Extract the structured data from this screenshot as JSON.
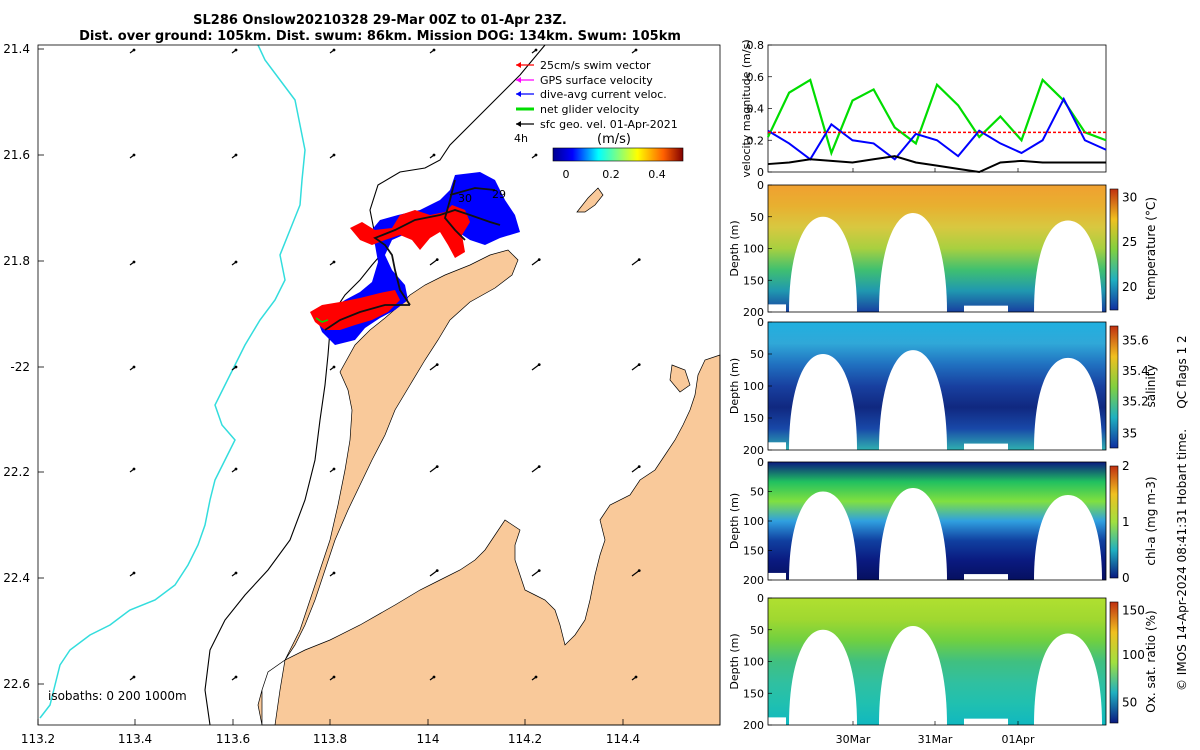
{
  "header": {
    "title_line1": "SL286 Onslow20210328 29-Mar 00Z to 01-Apr 23Z.",
    "title_line2": "Dist. over ground: 105km. Dist. swum: 86km. Mission DOG: 134km. Swum: 105km"
  },
  "map": {
    "lon_ticks": [
      "113.2",
      "113.4",
      "113.6",
      "113.8",
      "114",
      "114.2",
      "114.4"
    ],
    "lat_ticks": [
      "21.4",
      "21.6",
      "21.8",
      "-22",
      "22.2",
      "22.4",
      "22.6"
    ],
    "legend": [
      {
        "label": "25cm/s swim vector",
        "color": "#ff0000"
      },
      {
        "label": "GPS surface velocity",
        "color": "#ff00ff"
      },
      {
        "label": "dive-avg current veloc.",
        "color": "#0000ff"
      },
      {
        "label": "net glider velocity",
        "color": "#00dd00"
      },
      {
        "label": "sfc geo. vel. 01-Apr-2021",
        "color": "#000000"
      }
    ],
    "interval_label": "4h",
    "colorbar_unit": "(m/s)",
    "colorbar_ticks": [
      "0",
      "0.2",
      "0.4"
    ],
    "track_labels": [
      "30",
      "29"
    ],
    "isobath_label": "isobaths: 0   200  1000m",
    "colors": {
      "land": "#f9c99a",
      "isobath_1000": "#33dddd",
      "swim": "#ff0000",
      "current": "#0000ff"
    }
  },
  "chart_data": [
    {
      "type": "line",
      "ylabel": "velocity magnitude (m/s)",
      "ylim": [
        0,
        0.8
      ],
      "yticks": [
        "0",
        "0.2",
        "0.4",
        "0.6",
        "0.8"
      ],
      "x_days": [
        0,
        0.25,
        0.5,
        0.75,
        1.0,
        1.25,
        1.5,
        1.75,
        2.0,
        2.25,
        2.5,
        2.75,
        3.0,
        3.25,
        3.5,
        3.75,
        4.0
      ],
      "series": [
        {
          "color": "#00dd00",
          "values": [
            0.22,
            0.5,
            0.58,
            0.12,
            0.45,
            0.52,
            0.28,
            0.18,
            0.55,
            0.42,
            0.22,
            0.35,
            0.2,
            0.58,
            0.45,
            0.25,
            0.2
          ]
        },
        {
          "color": "#0000ff",
          "values": [
            0.26,
            0.18,
            0.08,
            0.3,
            0.2,
            0.18,
            0.08,
            0.24,
            0.2,
            0.1,
            0.26,
            0.18,
            0.12,
            0.2,
            0.46,
            0.2,
            0.14
          ]
        },
        {
          "color": "#000000",
          "values": [
            0.05,
            0.06,
            0.08,
            0.07,
            0.06,
            0.08,
            0.1,
            0.06,
            0.04,
            0.02,
            0.0,
            0.06,
            0.07,
            0.06,
            0.06,
            0.06,
            0.06
          ]
        },
        {
          "color": "#ff0000",
          "values": [
            0.25,
            0.25,
            0.25,
            0.25,
            0.25,
            0.25,
            0.25,
            0.25,
            0.25,
            0.25,
            0.25,
            0.25,
            0.25,
            0.25,
            0.25,
            0.25,
            0.25
          ]
        }
      ]
    },
    {
      "type": "heatmap",
      "ylabel": "Depth (m)",
      "yticks": [
        "0",
        "50",
        "100",
        "150",
        "200"
      ],
      "colorbar_label": "temperature (°C)",
      "colorbar_ticks": [
        "20",
        "25",
        "30"
      ]
    },
    {
      "type": "heatmap",
      "ylabel": "Depth (m)",
      "yticks": [
        "0",
        "50",
        "100",
        "150",
        "200"
      ],
      "colorbar_label": "salinity",
      "colorbar_ticks": [
        "35",
        "35.2",
        "35.4",
        "35.6"
      ]
    },
    {
      "type": "heatmap",
      "ylabel": "Depth (m)",
      "yticks": [
        "0",
        "50",
        "100",
        "150",
        "200"
      ],
      "colorbar_label": "chl-a (mg m-3)",
      "colorbar_ticks": [
        "0",
        "1",
        "2"
      ]
    },
    {
      "type": "heatmap",
      "ylabel": "Depth (m)",
      "yticks": [
        "0",
        "50",
        "100",
        "150",
        "200"
      ],
      "colorbar_label": "Ox. sat. ratio (%)",
      "colorbar_ticks": [
        "50",
        "100",
        "150"
      ]
    }
  ],
  "time_axis": {
    "labels": [
      "30Mar",
      "31Mar",
      "01Apr"
    ]
  },
  "side_note": "QC flags 1  2",
  "credit": "© IMOS 14-Apr-2024 08:41:31 Hobart time."
}
